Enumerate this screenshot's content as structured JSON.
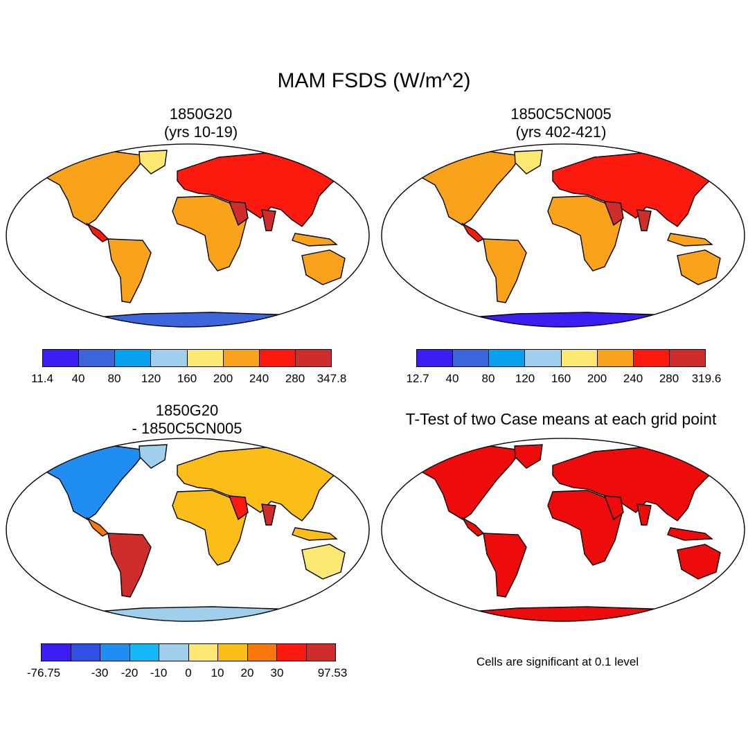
{
  "figure": {
    "title": "MAM FSDS (W/m^2)"
  },
  "panels": [
    {
      "title1": "1850G20",
      "title2": "(yrs 10-19)"
    },
    {
      "title1": "1850C5CN005",
      "title2": "(yrs 402-421)"
    },
    {
      "title1": "1850G20",
      "title2": "- 1850C5CN005"
    },
    {
      "title1": "T-Test of two Case means at each grid point",
      "title2": ""
    }
  ],
  "colorbars": [
    {
      "colors": [
        "#3b1ef2",
        "#3d66dd",
        "#0aa0f0",
        "#9fcfeb",
        "#fde874",
        "#f9a31c",
        "#fb1a0d",
        "#cf2c2c"
      ],
      "labels": [
        "11.4",
        "40",
        "80",
        "120",
        "160",
        "200",
        "240",
        "280",
        "347.8"
      ]
    },
    {
      "colors": [
        "#3b1ef2",
        "#3d66dd",
        "#0aa0f0",
        "#9fcfeb",
        "#fde874",
        "#f9a31c",
        "#fb1a0d",
        "#cf2c2c"
      ],
      "labels": [
        "12.7",
        "40",
        "80",
        "120",
        "160",
        "200",
        "240",
        "280",
        "319.6"
      ]
    },
    {
      "colors": [
        "#3b1ef2",
        "#2f50e0",
        "#1f8ef0",
        "#14b8f4",
        "#9fcfeb",
        "#fde874",
        "#fbbd18",
        "#f9780b",
        "#fb1a0d",
        "#cf2c2c"
      ],
      "labels": [
        "-76.75",
        "",
        "-30",
        "-20",
        "-10",
        "0",
        "10",
        "20",
        "30",
        "",
        "97.53"
      ]
    }
  ],
  "significance_note": "Cells are significant at 0.1 level",
  "significance_color": "#ee0b0b"
}
